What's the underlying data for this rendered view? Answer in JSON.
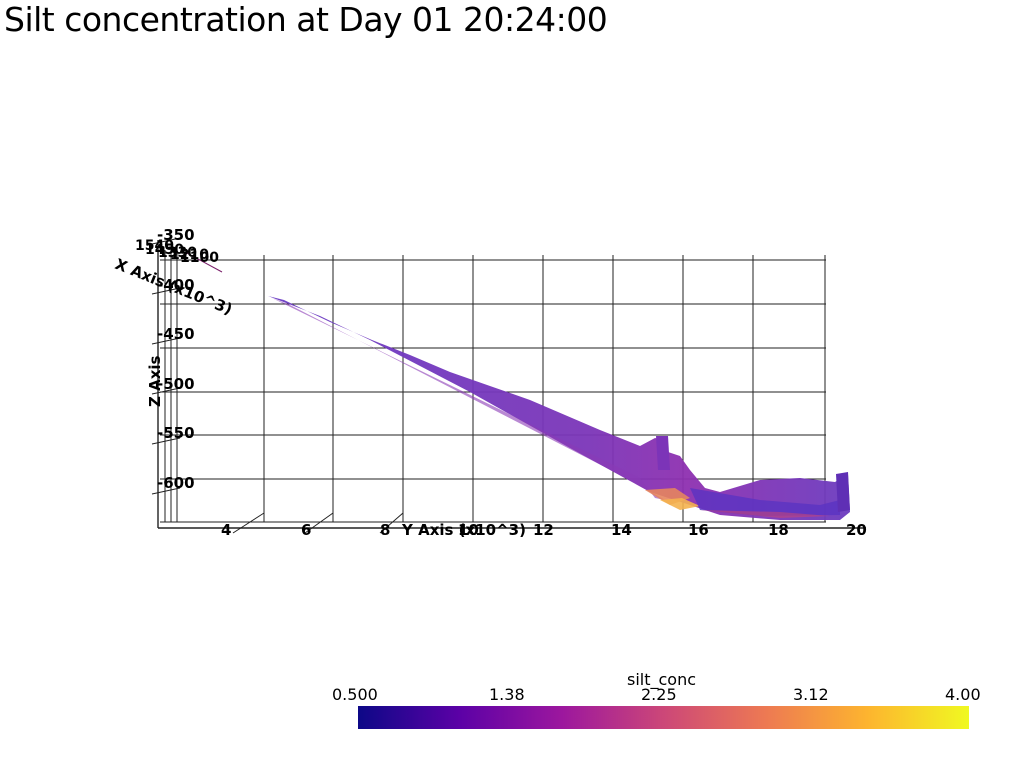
{
  "title": "Silt concentration at Day 01 20:24:00",
  "chart_data": {
    "type": "heatmap",
    "title": "Silt concentration at Day 01 20:24:00",
    "y_axis": {
      "label": "Y Axis (x10^3)",
      "ticks": [
        "4",
        "6",
        "8",
        "10",
        "12",
        "14",
        "16",
        "18",
        "20"
      ]
    },
    "z_axis": {
      "label": "Z Axis",
      "ticks": [
        "-350",
        "-400",
        "-450",
        "-500",
        "-550",
        "-600"
      ],
      "range": [
        -630,
        -350
      ]
    },
    "x_axis": {
      "label": "X Axis (x10^3)",
      "ticks": [
        "1540",
        "1450",
        "1330",
        "1210",
        "1100"
      ]
    },
    "colorbar": {
      "variable": "silt_conc",
      "colormap": "plasma",
      "range": [
        0.5,
        4.0
      ],
      "ticks": [
        "0.500",
        "1.38",
        "2.25",
        "3.12",
        "4.00"
      ],
      "colors": [
        "#0d0887",
        "#5c01a6",
        "#9c179e",
        "#cc4778",
        "#ed7953",
        "#fdb42f",
        "#f0f921"
      ]
    },
    "grid": true
  }
}
